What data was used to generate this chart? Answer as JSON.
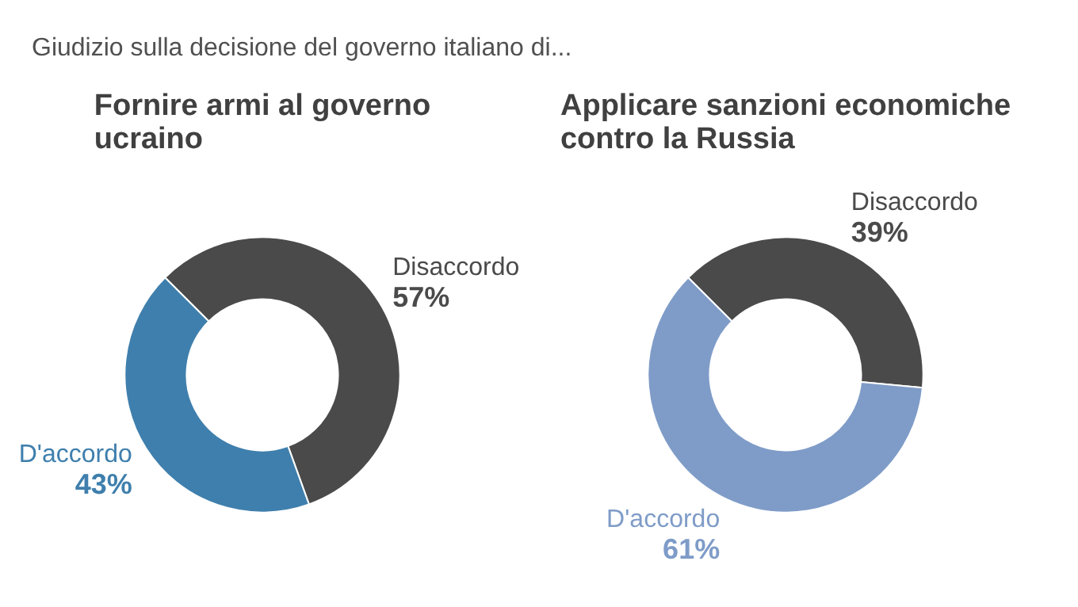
{
  "chart_data": [
    {
      "type": "donut",
      "title": "Fornire armi al governo ucraino",
      "annotations": [
        "Giudizio sulla decisione del governo italiano di..."
      ],
      "categories": [
        "Disaccordo",
        "D'accordo"
      ],
      "values": [
        57,
        43
      ],
      "colors": [
        "#4a4a4a",
        "#3f7fad"
      ],
      "value_labels": [
        "57%",
        "43%"
      ]
    },
    {
      "type": "donut",
      "title": "Applicare sanzioni economiche contro la Russia",
      "categories": [
        "Disaccordo",
        "D'accordo"
      ],
      "values": [
        39,
        61
      ],
      "colors": [
        "#4a4a4a",
        "#7f9cc8"
      ],
      "value_labels": [
        "39%",
        "61%"
      ]
    }
  ]
}
